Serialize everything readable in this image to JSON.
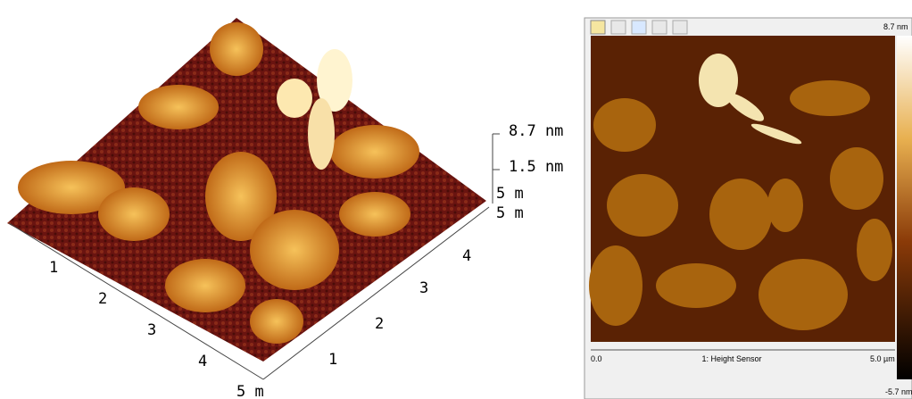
{
  "surface_3d": {
    "z_labels": [
      "8.7 nm",
      "1.5 nm"
    ],
    "corner_labels": [
      "5 m",
      "5 m"
    ],
    "front_axis_ticks": [
      "1",
      "2",
      "3",
      "4",
      "5 m"
    ],
    "right_axis_ticks": [
      "1",
      "2",
      "3",
      "4"
    ]
  },
  "height_image": {
    "scale_max": "8.7 nm",
    "scale_min": "-5.7 nm",
    "x_start": "0.0",
    "channel": "1: Height Sensor",
    "x_end": "5.0 µm"
  }
}
